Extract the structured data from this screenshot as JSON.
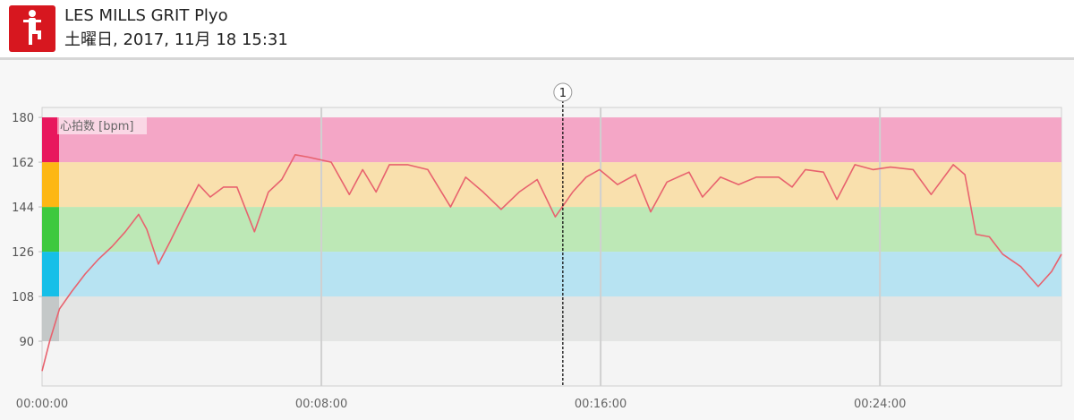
{
  "header": {
    "title": "LES MILLS GRIT Plyo",
    "subtitle": "土曜日, 2017, 11月 18 15:31"
  },
  "chart_data": {
    "type": "line",
    "y_label": "心拍数 [bpm]",
    "color": "#e8626e",
    "x": [
      0,
      13,
      30,
      51,
      74,
      97,
      120,
      143,
      166,
      180,
      200,
      220,
      243,
      269,
      289,
      312,
      335,
      365,
      389,
      412,
      435,
      458,
      497,
      528,
      551,
      574,
      597,
      628,
      663,
      702,
      728,
      758,
      789,
      820,
      851,
      882,
      912,
      935,
      958,
      989,
      1020,
      1046,
      1074,
      1112,
      1135,
      1166,
      1197,
      1228,
      1266,
      1289,
      1312,
      1343,
      1366,
      1397,
      1428,
      1458,
      1497,
      1528,
      1566,
      1586,
      1605,
      1628,
      1651,
      1682,
      1712,
      1735,
      1752
    ],
    "values": [
      78,
      90,
      103,
      110,
      117,
      123,
      128,
      134,
      141,
      135,
      121,
      130,
      141,
      153,
      148,
      152,
      152,
      134,
      150,
      155,
      165,
      164,
      162,
      149,
      159,
      150,
      161,
      161,
      159,
      144,
      156,
      150,
      143,
      150,
      155,
      140,
      150,
      156,
      159,
      153,
      157,
      142,
      154,
      158,
      148,
      156,
      153,
      156,
      156,
      152,
      159,
      158,
      147,
      161,
      159,
      160,
      159,
      149,
      161,
      157,
      133,
      132,
      125,
      120,
      112,
      118,
      125
    ],
    "xlim": [
      0,
      1752
    ],
    "ylim": [
      72,
      184
    ],
    "xticks": [
      {
        "value": 0,
        "label": "00:00:00"
      },
      {
        "value": 480,
        "label": "00:08:00"
      },
      {
        "value": 960,
        "label": "00:16:00"
      },
      {
        "value": 1440,
        "label": "00:24:00"
      }
    ],
    "yticks": [
      90,
      108,
      126,
      144,
      162,
      180
    ],
    "zones": [
      {
        "min": 90,
        "max": 108,
        "color": "#e4e5e4",
        "strip": "#c4c8c8"
      },
      {
        "min": 108,
        "max": 126,
        "color": "#b7e3f2",
        "strip": "#16bfe8"
      },
      {
        "min": 126,
        "max": 144,
        "color": "#bde8b6",
        "strip": "#3ec93e"
      },
      {
        "min": 144,
        "max": 162,
        "color": "#f9e0ad",
        "strip": "#fdb714"
      },
      {
        "min": 162,
        "max": 180,
        "color": "#f4a6c6",
        "strip": "#e8175d"
      }
    ],
    "lap_marker": {
      "label": "1",
      "x": 895
    }
  }
}
